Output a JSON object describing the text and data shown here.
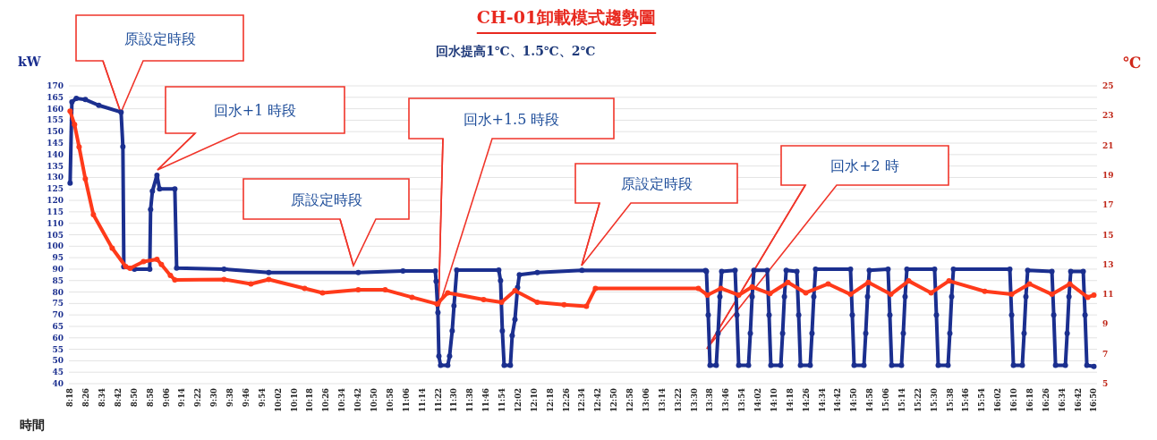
{
  "chart_data": {
    "type": "line",
    "title": "CH-01卸載模式趨勢圖",
    "subtitle": "回水提高1℃、1.5℃、2℃",
    "xlabel": "時間",
    "ylabel": "kW",
    "y2label": "℃",
    "xlim": [
      8.29,
      16.86
    ],
    "xticks": [
      {
        "value": 8.3,
        "label": "8:18"
      },
      {
        "value": 8.4333,
        "label": "8:26"
      },
      {
        "value": 8.5667,
        "label": "8:34"
      },
      {
        "value": 8.7,
        "label": "8:42"
      },
      {
        "value": 8.8333,
        "label": "8:50"
      },
      {
        "value": 8.9667,
        "label": "8:58"
      },
      {
        "value": 9.1,
        "label": "9:06"
      },
      {
        "value": 9.2333,
        "label": "9:14"
      },
      {
        "value": 9.3667,
        "label": "9:22"
      },
      {
        "value": 9.5,
        "label": "9:30"
      },
      {
        "value": 9.6333,
        "label": "9:38"
      },
      {
        "value": 9.7667,
        "label": "9:46"
      },
      {
        "value": 9.9,
        "label": "9:54"
      },
      {
        "value": 10.0333,
        "label": "10:02"
      },
      {
        "value": 10.1667,
        "label": "10:10"
      },
      {
        "value": 10.3,
        "label": "10:18"
      },
      {
        "value": 10.4333,
        "label": "10:26"
      },
      {
        "value": 10.5667,
        "label": "10:34"
      },
      {
        "value": 10.7,
        "label": "10:42"
      },
      {
        "value": 10.8333,
        "label": "10:50"
      },
      {
        "value": 10.9667,
        "label": "10:58"
      },
      {
        "value": 11.1,
        "label": "11:06"
      },
      {
        "value": 11.2333,
        "label": "11:14"
      },
      {
        "value": 11.3667,
        "label": "11:22"
      },
      {
        "value": 11.5,
        "label": "11:30"
      },
      {
        "value": 11.6333,
        "label": "11:38"
      },
      {
        "value": 11.7667,
        "label": "11:46"
      },
      {
        "value": 11.9,
        "label": "11:54"
      },
      {
        "value": 12.0333,
        "label": "12:02"
      },
      {
        "value": 12.1667,
        "label": "12:10"
      },
      {
        "value": 12.3,
        "label": "12:18"
      },
      {
        "value": 12.4333,
        "label": "12:26"
      },
      {
        "value": 12.5667,
        "label": "12:34"
      },
      {
        "value": 12.7,
        "label": "12:42"
      },
      {
        "value": 12.8333,
        "label": "12:50"
      },
      {
        "value": 12.9667,
        "label": "12:58"
      },
      {
        "value": 13.1,
        "label": "13:06"
      },
      {
        "value": 13.2333,
        "label": "13:14"
      },
      {
        "value": 13.3667,
        "label": "13:22"
      },
      {
        "value": 13.5,
        "label": "13:30"
      },
      {
        "value": 13.6333,
        "label": "13:38"
      },
      {
        "value": 13.7667,
        "label": "13:46"
      },
      {
        "value": 13.9,
        "label": "13:54"
      },
      {
        "value": 14.0333,
        "label": "14:02"
      },
      {
        "value": 14.1667,
        "label": "14:10"
      },
      {
        "value": 14.3,
        "label": "14:18"
      },
      {
        "value": 14.4333,
        "label": "14:26"
      },
      {
        "value": 14.5667,
        "label": "14:34"
      },
      {
        "value": 14.7,
        "label": "14:42"
      },
      {
        "value": 14.8333,
        "label": "14:50"
      },
      {
        "value": 14.9667,
        "label": "14:58"
      },
      {
        "value": 15.1,
        "label": "15:06"
      },
      {
        "value": 15.2333,
        "label": "15:14"
      },
      {
        "value": 15.3667,
        "label": "15:22"
      },
      {
        "value": 15.5,
        "label": "15:30"
      },
      {
        "value": 15.6333,
        "label": "15:38"
      },
      {
        "value": 15.7667,
        "label": "15:46"
      },
      {
        "value": 15.9,
        "label": "15:54"
      },
      {
        "value": 16.0333,
        "label": "16:02"
      },
      {
        "value": 16.1667,
        "label": "16:10"
      },
      {
        "value": 16.3,
        "label": "16:18"
      },
      {
        "value": 16.4333,
        "label": "16:26"
      },
      {
        "value": 16.5667,
        "label": "16:34"
      },
      {
        "value": 16.7,
        "label": "16:42"
      },
      {
        "value": 16.8333,
        "label": "16:50"
      }
    ],
    "ylim": [
      40,
      170
    ],
    "yticks": [
      40,
      45,
      50,
      55,
      60,
      65,
      70,
      75,
      80,
      85,
      90,
      95,
      100,
      105,
      110,
      115,
      120,
      125,
      130,
      135,
      140,
      145,
      150,
      155,
      160,
      165,
      170
    ],
    "y2lim": [
      5,
      25
    ],
    "y2ticks": [
      5,
      7,
      9,
      11,
      13,
      15,
      17,
      19,
      21,
      23,
      25
    ],
    "grid": "y",
    "marker": "circle",
    "line_style": "solid",
    "series": [
      {
        "color": "#1b2f8f",
        "x": [
          8.3,
          8.315,
          8.352,
          8.427,
          8.539,
          8.725,
          8.74,
          8.748,
          8.837,
          8.964,
          8.971,
          8.986,
          9.024,
          9.046,
          9.173,
          9.188,
          9.583,
          9.956,
          10.702,
          11.075,
          11.344,
          11.351,
          11.366,
          11.374,
          11.388,
          11.448,
          11.463,
          11.485,
          11.5,
          11.523,
          11.873,
          11.888,
          11.903,
          11.918,
          11.97,
          11.985,
          12.008,
          12.03,
          12.045,
          12.194,
          12.567,
          13.597,
          13.604,
          13.619,
          13.634,
          13.686,
          13.701,
          13.716,
          13.731,
          13.843,
          13.858,
          13.873,
          13.955,
          13.97,
          13.985,
          14.0,
          14.111,
          14.126,
          14.141,
          14.224,
          14.239,
          14.254,
          14.269,
          14.358,
          14.373,
          14.388,
          14.469,
          14.484,
          14.499,
          14.514,
          14.805,
          14.82,
          14.835,
          14.917,
          14.932,
          14.947,
          14.962,
          15.118,
          15.133,
          15.148,
          15.23,
          15.245,
          15.26,
          15.275,
          15.506,
          15.521,
          15.536,
          15.618,
          15.633,
          15.648,
          15.663,
          16.133,
          16.148,
          16.163,
          16.237,
          16.252,
          16.267,
          16.282,
          16.484,
          16.499,
          16.514,
          16.596,
          16.611,
          16.626,
          16.641,
          16.745,
          16.76,
          16.775,
          16.834
        ],
        "values": [
          127.5,
          163,
          164.5,
          164,
          161.5,
          158.5,
          143.5,
          91,
          90,
          90,
          116,
          124,
          131,
          125,
          125,
          90.5,
          90,
          88.5,
          88.5,
          89.2,
          89.2,
          84.7,
          71,
          52,
          48,
          48,
          52,
          63,
          74,
          89.6,
          89.6,
          85,
          63,
          48,
          48,
          61,
          68,
          82,
          87.5,
          88.5,
          89.5,
          89.4,
          89,
          70,
          48,
          48,
          62,
          78,
          89,
          89.5,
          70,
          48,
          48,
          62,
          78,
          89.5,
          89.5,
          70,
          48,
          48,
          62,
          78,
          89.5,
          89,
          70,
          48,
          48,
          62,
          78,
          90,
          90,
          70,
          48,
          48,
          62,
          78,
          89.5,
          90,
          70,
          48,
          48,
          62,
          78,
          90,
          90,
          70,
          48,
          48,
          62,
          78,
          90,
          90,
          70,
          48,
          48,
          62,
          78,
          89.5,
          89,
          70,
          48,
          48,
          62,
          78,
          89,
          89,
          70,
          48,
          47.5
        ]
      },
      {
        "color": "#ff3a1a",
        "axis": "y2",
        "x": [
          8.3,
          8.337,
          8.375,
          8.427,
          8.494,
          8.651,
          8.763,
          8.8,
          8.912,
          9.024,
          9.061,
          9.136,
          9.173,
          9.583,
          9.807,
          9.956,
          10.255,
          10.404,
          10.702,
          10.926,
          11.15,
          11.359,
          11.448,
          11.747,
          11.896,
          12.008,
          12.194,
          12.418,
          12.604,
          12.679,
          13.537,
          13.612,
          13.724,
          13.873,
          13.985,
          14.134,
          14.283,
          14.432,
          14.619,
          14.805,
          14.954,
          15.141,
          15.29,
          15.477,
          15.626,
          15.924,
          16.148,
          16.297,
          16.484,
          16.633,
          16.782,
          16.834
        ],
        "values": [
          23.3,
          22.4,
          20.9,
          18.75,
          16.35,
          14.1,
          12.87,
          12.75,
          13.2,
          13.35,
          13.0,
          12.27,
          11.97,
          12.0,
          11.7,
          12.0,
          11.4,
          11.1,
          11.3,
          11.3,
          10.8,
          10.35,
          11.1,
          10.65,
          10.47,
          11.25,
          10.47,
          10.3,
          10.2,
          11.4,
          11.4,
          10.95,
          11.4,
          10.95,
          11.5,
          11.05,
          11.8,
          11.1,
          11.7,
          11.0,
          11.8,
          11.0,
          11.9,
          11.1,
          11.9,
          11.2,
          11.0,
          11.7,
          11.0,
          11.7,
          10.8,
          10.95
        ]
      }
    ],
    "annotations": [
      "原設定時段",
      "回水+1 時段",
      "原設定時段",
      "回水+1.5 時段",
      "原設定時段",
      "回水+2 時"
    ]
  }
}
